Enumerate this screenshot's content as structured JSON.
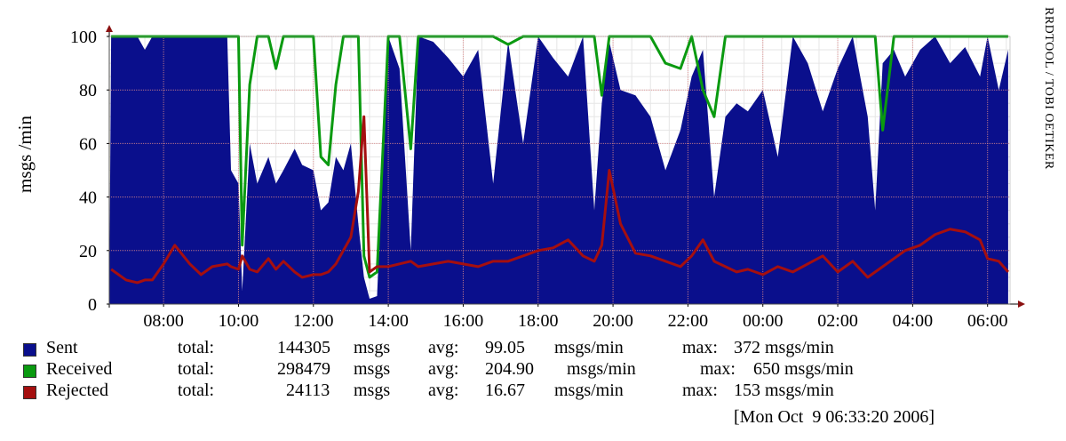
{
  "chart_data": {
    "type": "area",
    "ylabel": "msgs /min",
    "ylim": [
      0,
      100
    ],
    "yticks": [
      0,
      20,
      40,
      60,
      80,
      100
    ],
    "xticks": [
      "08:00",
      "10:00",
      "12:00",
      "14:00",
      "16:00",
      "18:00",
      "20:00",
      "22:00",
      "00:00",
      "02:00",
      "04:00",
      "06:00"
    ],
    "x_hours": [
      6.6,
      7.0,
      7.3,
      7.5,
      7.7,
      8.0,
      8.3,
      8.7,
      9.0,
      9.3,
      9.7,
      9.8,
      10.0,
      10.1,
      10.3,
      10.5,
      10.8,
      11.0,
      11.2,
      11.5,
      11.7,
      12.0,
      12.2,
      12.4,
      12.6,
      12.8,
      13.0,
      13.2,
      13.35,
      13.5,
      13.7,
      14.0,
      14.3,
      14.6,
      14.8,
      15.2,
      15.6,
      16.0,
      16.4,
      16.8,
      17.2,
      17.6,
      18.0,
      18.4,
      18.8,
      19.2,
      19.5,
      19.7,
      19.9,
      20.2,
      20.6,
      21.0,
      21.4,
      21.8,
      22.1,
      22.4,
      22.7,
      23.0,
      23.3,
      23.6,
      24.0,
      24.4,
      24.8,
      25.2,
      25.6,
      26.0,
      26.4,
      26.8,
      27.0,
      27.2,
      27.5,
      27.8,
      28.2,
      28.6,
      29.0,
      29.4,
      29.8,
      30.0,
      30.3,
      30.55
    ],
    "series": [
      {
        "name": "Sent",
        "color": "#0a0f8c",
        "values": [
          100,
          100,
          100,
          95,
          100,
          100,
          100,
          100,
          100,
          100,
          100,
          50,
          45,
          5,
          60,
          45,
          55,
          45,
          50,
          58,
          52,
          50,
          35,
          38,
          55,
          50,
          60,
          30,
          10,
          2,
          3,
          100,
          88,
          20,
          100,
          98,
          92,
          85,
          95,
          45,
          98,
          60,
          100,
          92,
          85,
          100,
          35,
          75,
          98,
          80,
          78,
          70,
          50,
          65,
          85,
          95,
          40,
          70,
          75,
          72,
          80,
          55,
          100,
          90,
          72,
          88,
          100,
          70,
          35,
          90,
          95,
          85,
          95,
          100,
          90,
          96,
          85,
          100,
          80,
          95
        ]
      },
      {
        "name": "Received",
        "color": "#0a9a10",
        "values": [
          100,
          100,
          100,
          100,
          100,
          100,
          100,
          100,
          100,
          100,
          100,
          100,
          100,
          22,
          82,
          100,
          100,
          88,
          100,
          100,
          100,
          100,
          55,
          52,
          82,
          100,
          100,
          100,
          18,
          10,
          12,
          100,
          100,
          58,
          100,
          100,
          100,
          100,
          100,
          100,
          97,
          100,
          100,
          100,
          100,
          100,
          100,
          78,
          100,
          100,
          100,
          100,
          90,
          88,
          100,
          80,
          70,
          100,
          100,
          100,
          100,
          100,
          100,
          100,
          100,
          100,
          100,
          100,
          100,
          65,
          100,
          100,
          100,
          100,
          100,
          100,
          100,
          100,
          100,
          100
        ]
      },
      {
        "name": "Rejected",
        "color": "#a50f0f",
        "values": [
          13,
          9,
          8,
          9,
          9,
          15,
          22,
          15,
          11,
          14,
          15,
          14,
          13,
          18,
          13,
          12,
          17,
          13,
          16,
          12,
          10,
          11,
          11,
          12,
          15,
          20,
          25,
          42,
          70,
          12,
          14,
          14,
          15,
          16,
          14,
          15,
          16,
          15,
          14,
          16,
          16,
          18,
          20,
          21,
          24,
          18,
          16,
          22,
          50,
          30,
          19,
          18,
          16,
          14,
          18,
          24,
          16,
          14,
          12,
          13,
          11,
          14,
          12,
          15,
          18,
          12,
          16,
          10,
          12,
          14,
          17,
          20,
          22,
          26,
          28,
          27,
          24,
          17,
          16,
          12
        ]
      }
    ],
    "legend": [
      {
        "name": "Sent",
        "total": "144305",
        "unit": "msgs",
        "avg": "99.05",
        "avg_unit": "msgs/min",
        "max": "372 msgs/min"
      },
      {
        "name": "Received",
        "total": "298479",
        "unit": "msgs",
        "avg": "204.90",
        "avg_unit": "msgs/min",
        "max": "650 msgs/min"
      },
      {
        "name": "Rejected",
        "total": "24113",
        "unit": "msgs",
        "avg": "16.67",
        "avg_unit": "msgs/min",
        "max": "153 msgs/min"
      }
    ],
    "legend_labels": {
      "total": "total:",
      "avg": "avg:",
      "max": "max:"
    },
    "watermark": "RRDTOOL / TOBI OETIKER",
    "timestamp": "[Mon Oct  9 06:33:20 2006]",
    "grid": true,
    "background_color": "#ffffff"
  }
}
